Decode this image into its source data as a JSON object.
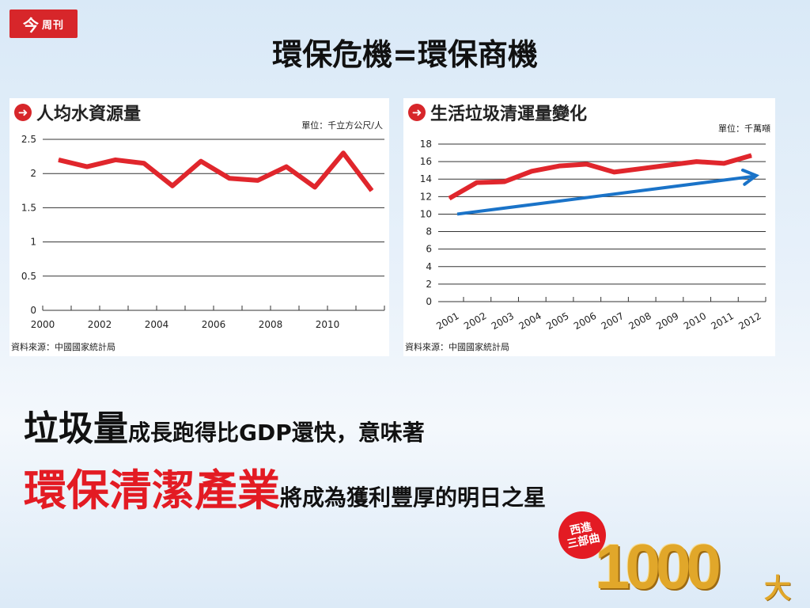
{
  "logo": {
    "main": "今",
    "sub": "周刊"
  },
  "title": "環保危機=環保商機",
  "chart_data": [
    {
      "type": "line",
      "title": "人均水資源量",
      "unit": "單位：千立方公尺/人",
      "source": "資料來源：中國國家統計局",
      "x": [
        2000,
        2001,
        2002,
        2003,
        2004,
        2005,
        2006,
        2007,
        2008,
        2009,
        2010,
        2011
      ],
      "xticks": [
        "2000",
        "2002",
        "2004",
        "2006",
        "2008",
        "2010"
      ],
      "yticks": [
        "0",
        "0.5",
        "1",
        "1.5",
        "2",
        "2.5"
      ],
      "ylim": [
        0,
        2.5
      ],
      "series": [
        {
          "values": [
            2.2,
            2.1,
            2.2,
            2.15,
            1.82,
            2.18,
            1.93,
            1.9,
            2.1,
            1.8,
            2.3,
            1.75
          ],
          "color": "#e0262c"
        }
      ]
    },
    {
      "type": "line",
      "title": "生活垃圾清運量變化",
      "unit": "單位：千萬噸",
      "source": "資料來源：中國國家統計局",
      "categories": [
        "2001",
        "2002",
        "2003",
        "2004",
        "2005",
        "2006",
        "2007",
        "2008",
        "2009",
        "2010",
        "2011",
        "2012"
      ],
      "yticks": [
        "0",
        "2",
        "4",
        "6",
        "8",
        "10",
        "12",
        "14",
        "16",
        "18"
      ],
      "ylim": [
        0,
        18
      ],
      "series": [
        {
          "values": [
            11.8,
            13.6,
            13.7,
            14.9,
            15.5,
            15.7,
            14.8,
            15.2,
            15.6,
            16.0,
            15.8,
            16.7
          ],
          "color": "#e0262c"
        }
      ],
      "trend_arrow": {
        "from": [
          2001,
          10
        ],
        "to": [
          2012,
          14.4
        ],
        "color": "#1a73c8"
      }
    }
  ],
  "caption1": {
    "big": "垃圾量",
    "small": "成長跑得比GDP還快，意味著"
  },
  "caption2": {
    "big": "環保清潔產業",
    "small": "將成為獲利豐厚的明日之星"
  },
  "badge": {
    "line1": "西進",
    "line2": "三部曲"
  },
  "brand": {
    "number": "1000",
    "suffix": "大"
  }
}
